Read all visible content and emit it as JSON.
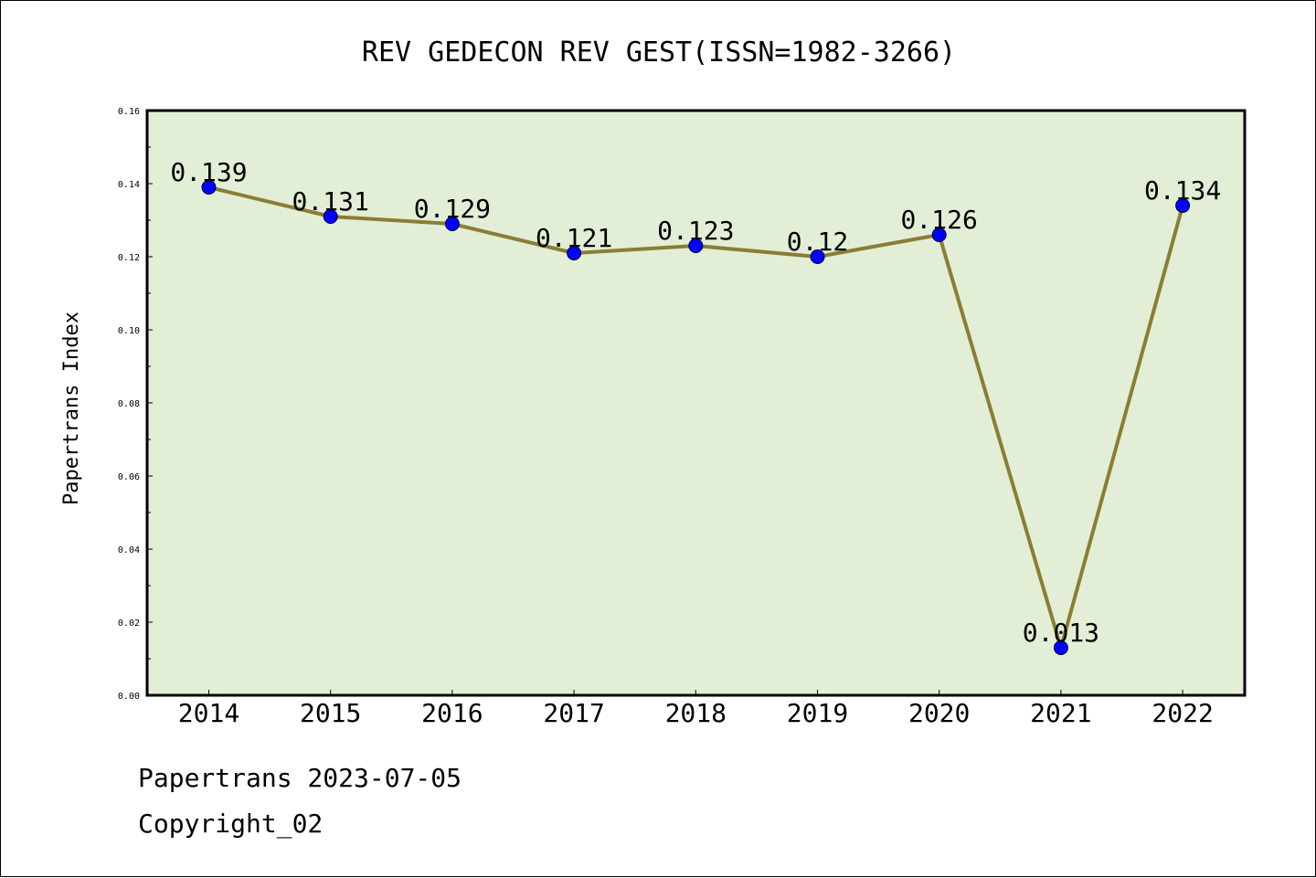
{
  "chart_data": {
    "type": "line",
    "title": "REV GEDECON REV GEST(ISSN=1982-3266)",
    "xlabel": "",
    "ylabel": "Papertrans Index",
    "categories": [
      "2014",
      "2015",
      "2016",
      "2017",
      "2018",
      "2019",
      "2020",
      "2021",
      "2022"
    ],
    "series": [
      {
        "values": [
          0.139,
          0.131,
          0.129,
          0.121,
          0.123,
          0.12,
          0.126,
          0.013,
          0.134
        ],
        "labels": [
          "0.139",
          "0.131",
          "0.129",
          "0.121",
          "0.123",
          "0.12",
          "0.126",
          "0.013",
          "0.134"
        ]
      }
    ],
    "ylim": [
      0,
      0.16
    ],
    "yticks": [
      "0.00",
      "0.02",
      "0.04",
      "0.06",
      "0.08",
      "0.10",
      "0.12",
      "0.14",
      "0.16"
    ],
    "grid": false,
    "legend": "none",
    "colors": {
      "plot_background": "#e2efd6",
      "line": "#8b7d34",
      "marker": "#0000ff"
    }
  },
  "footer": {
    "line1": "Papertrans 2023-07-05",
    "line2": "Copyright_02"
  }
}
